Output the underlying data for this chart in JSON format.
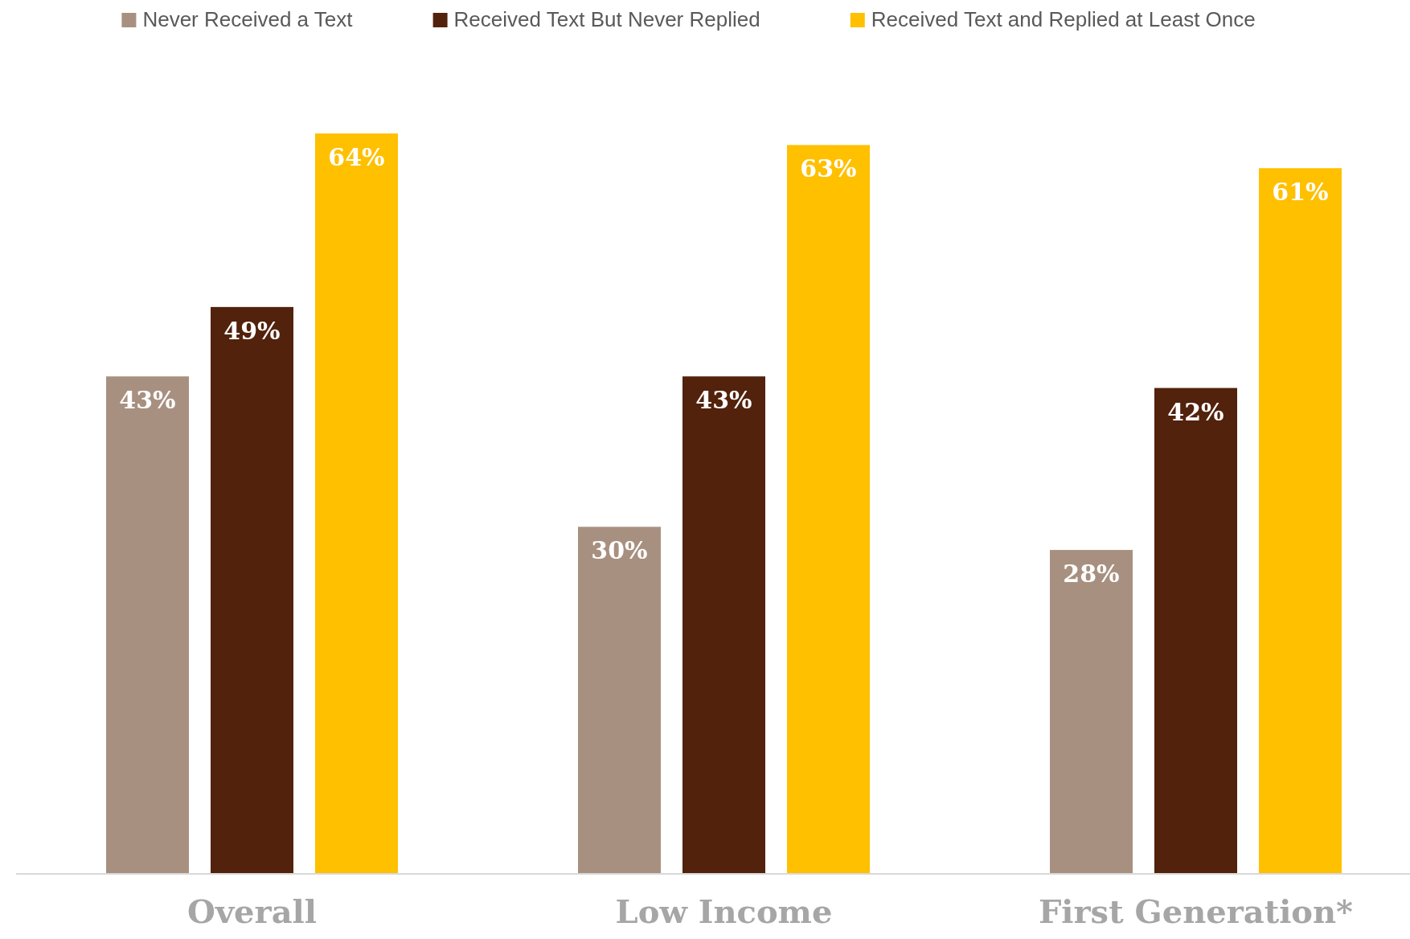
{
  "chart_data": {
    "type": "bar",
    "categories": [
      "Overall",
      "Low Income",
      "First Generation*"
    ],
    "series": [
      {
        "name": "Never Received a Text",
        "color": "#a89080",
        "values": [
          43,
          30,
          28
        ],
        "value_labels": [
          "43%",
          "30%",
          "28%"
        ]
      },
      {
        "name": "Received Text But Never Replied",
        "color": "#52220c",
        "values": [
          49,
          43,
          42
        ],
        "value_labels": [
          "49%",
          "43%",
          "42%"
        ]
      },
      {
        "name": "Received Text and Replied at Least Once",
        "color": "#ffc000",
        "values": [
          64,
          63,
          61
        ],
        "value_labels": [
          "64%",
          "63%",
          "61%"
        ]
      }
    ],
    "legend": "top",
    "tick_labels": "x"
  }
}
